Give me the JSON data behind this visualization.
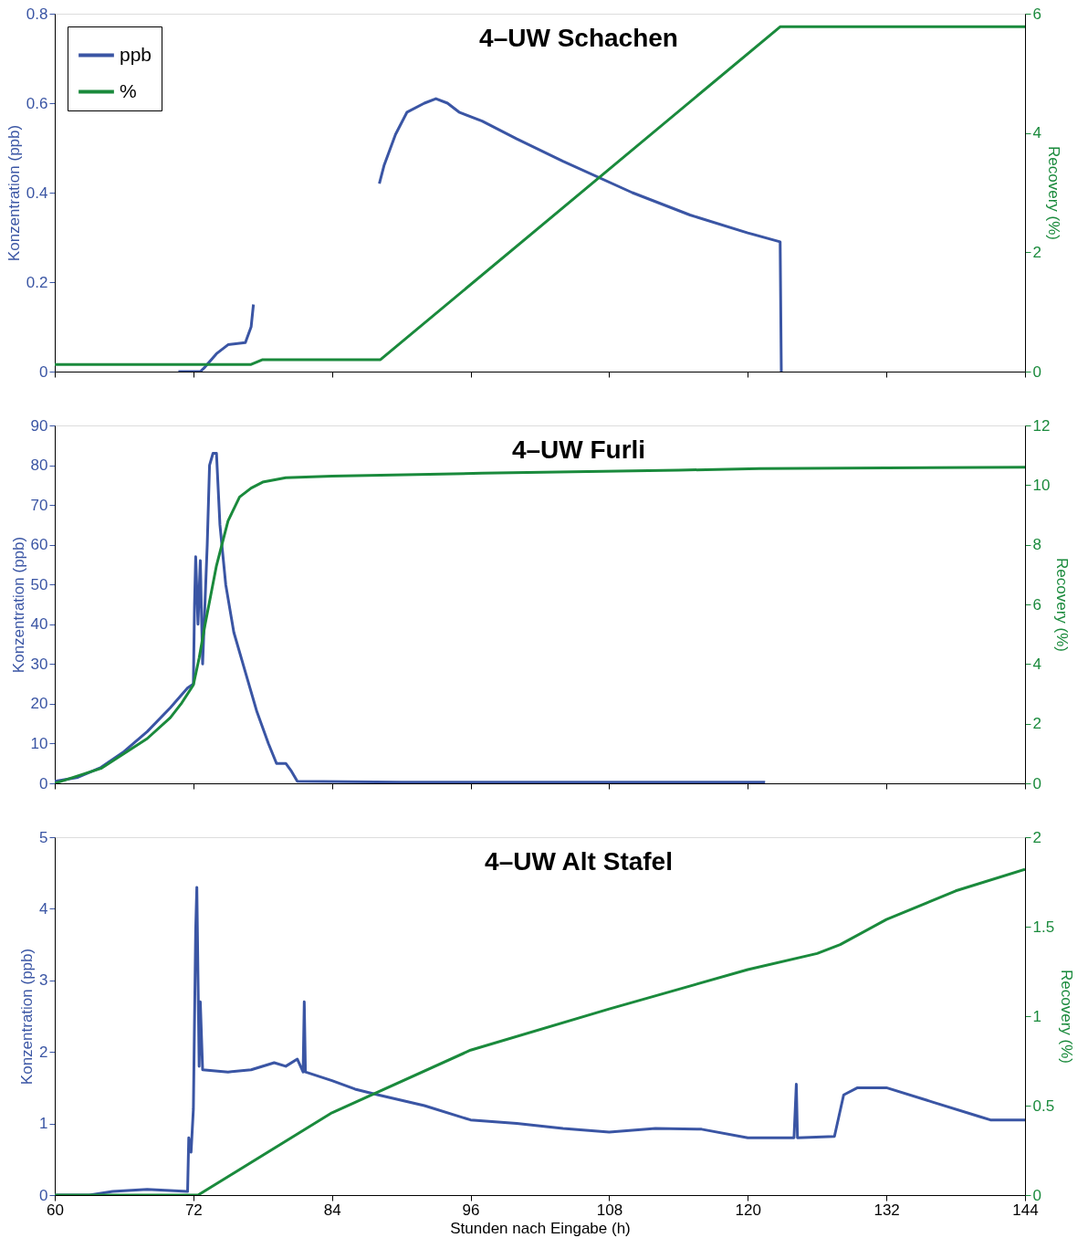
{
  "chart_data": [
    {
      "type": "line",
      "title": "4–UW Schachen",
      "ylabel": "Konzentration (ppb)",
      "y2label": "Recovery (%)",
      "xlim": [
        60,
        144
      ],
      "xticks": [
        60,
        72,
        84,
        96,
        108,
        120,
        132,
        144
      ],
      "ylim": [
        0,
        0.8
      ],
      "yticks": [
        0,
        0.2,
        0.4,
        0.6,
        0.8
      ],
      "y2lim": [
        0,
        6
      ],
      "y2ticks": [
        0,
        2,
        4,
        6
      ],
      "tick_labels": "y",
      "legend": "top left",
      "grid": false,
      "series": [
        {
          "name": "ppb",
          "color": "#3a55a4",
          "x": [
            70.7,
            72.0,
            72.6,
            73.0,
            74.0,
            75.0,
            76.5,
            77.0,
            77.2,
            80.0,
            88.1,
            88.5,
            89.5,
            90.5,
            92.0,
            93.0,
            94.0,
            95.0,
            97.0,
            100.0,
            104.0,
            110.0,
            115.0,
            120.0,
            122.8,
            122.9
          ],
          "values": [
            0,
            0,
            0,
            0.01,
            0.04,
            0.06,
            0.065,
            0.1,
            0.15,
            null,
            0.42,
            0.46,
            0.53,
            0.58,
            0.6,
            0.61,
            0.6,
            0.58,
            0.56,
            0.52,
            0.47,
            0.4,
            0.35,
            0.31,
            0.29,
            0
          ]
        },
        {
          "name": "%",
          "color": "#1a8a3c",
          "axis": "y2",
          "x": [
            60,
            77,
            78,
            88.2,
            122.8,
            144
          ],
          "values": [
            0.12,
            0.12,
            0.2,
            0.2,
            5.78,
            5.78
          ]
        }
      ]
    },
    {
      "type": "line",
      "title": "4–UW Furli",
      "ylabel": "Konzentration (ppb)",
      "y2label": "Recovery (%)",
      "xlim": [
        60,
        144
      ],
      "xticks": [
        60,
        72,
        84,
        96,
        108,
        120,
        132,
        144
      ],
      "ylim": [
        0,
        90
      ],
      "yticks": [
        0,
        10,
        20,
        30,
        40,
        50,
        60,
        70,
        80,
        90
      ],
      "y2lim": [
        0,
        12
      ],
      "y2ticks": [
        0,
        2,
        4,
        6,
        8,
        10,
        12
      ],
      "tick_labels": "y",
      "legend": "top left",
      "grid": false,
      "series": [
        {
          "name": "ppb",
          "color": "#3a55a4",
          "x": [
            60,
            62,
            64,
            66,
            68,
            70,
            71.5,
            72.0,
            72.1,
            72.2,
            72.4,
            72.6,
            72.8,
            73.2,
            73.4,
            73.7,
            74.0,
            74.3,
            74.8,
            75.5,
            76.5,
            77.5,
            78.5,
            79.2,
            80.0,
            80.5,
            81.0,
            90.0,
            121.5
          ],
          "values": [
            0.5,
            1.5,
            4,
            8,
            13,
            19,
            24,
            25,
            45,
            57,
            40,
            56,
            30,
            60,
            80,
            83,
            83,
            65,
            50,
            38,
            28,
            18,
            10,
            5,
            5,
            3,
            0.5,
            0.3,
            0.3
          ]
        },
        {
          "name": "%",
          "color": "#1a8a3c",
          "axis": "y2",
          "x": [
            60,
            64,
            68,
            70,
            71,
            72,
            72.5,
            73,
            73.5,
            74,
            75,
            76,
            77,
            78,
            80,
            84,
            97,
            114,
            121,
            144
          ],
          "values": [
            0,
            0.5,
            1.5,
            2.2,
            2.7,
            3.3,
            4.2,
            5.3,
            6.3,
            7.3,
            8.8,
            9.6,
            9.9,
            10.1,
            10.25,
            10.3,
            10.4,
            10.5,
            10.55,
            10.6
          ]
        }
      ]
    },
    {
      "type": "line",
      "title": "4–UW Alt Stafel",
      "xlabel": "Stunden nach Eingabe (h)",
      "ylabel": "Konzentration (ppb)",
      "y2label": "Recovery (%)",
      "xlim": [
        60,
        144
      ],
      "xticks": [
        60,
        72,
        84,
        96,
        108,
        120,
        132,
        144
      ],
      "ylim": [
        0,
        5
      ],
      "yticks": [
        0,
        1,
        2,
        3,
        4,
        5
      ],
      "y2lim": [
        0,
        2
      ],
      "y2ticks": [
        0,
        0.5,
        1,
        1.5,
        2
      ],
      "legend": "top left",
      "grid": false,
      "series": [
        {
          "name": "ppb",
          "color": "#3a55a4",
          "x": [
            60,
            63,
            65,
            68,
            71.5,
            71.6,
            71.8,
            72.0,
            72.2,
            72.3,
            72.5,
            72.6,
            72.8,
            75,
            77,
            79,
            80,
            81,
            81.5,
            81.6,
            81.7,
            84,
            86,
            88,
            92,
            96,
            100,
            104,
            108,
            112,
            116,
            120,
            124,
            124.2,
            124.3,
            127.5,
            128.3,
            129.5,
            132,
            136,
            140,
            141,
            144
          ],
          "values": [
            0,
            0,
            0.05,
            0.08,
            0.05,
            0.8,
            0.6,
            1.2,
            3.7,
            4.3,
            1.8,
            2.7,
            1.75,
            1.72,
            1.75,
            1.85,
            1.8,
            1.9,
            1.72,
            2.7,
            1.72,
            1.6,
            1.48,
            1.4,
            1.25,
            1.05,
            1.0,
            0.93,
            0.88,
            0.93,
            0.92,
            0.8,
            0.8,
            1.55,
            0.8,
            0.82,
            1.4,
            1.5,
            1.5,
            1.3,
            1.1,
            1.05,
            1.05
          ]
        },
        {
          "name": "%",
          "color": "#1a8a3c",
          "axis": "y2",
          "x": [
            60,
            72.4,
            84,
            96,
            108,
            120,
            126,
            128,
            132,
            138,
            144
          ],
          "values": [
            0,
            0,
            0.46,
            0.81,
            1.04,
            1.26,
            1.35,
            1.4,
            1.54,
            1.7,
            1.82
          ]
        }
      ]
    }
  ]
}
